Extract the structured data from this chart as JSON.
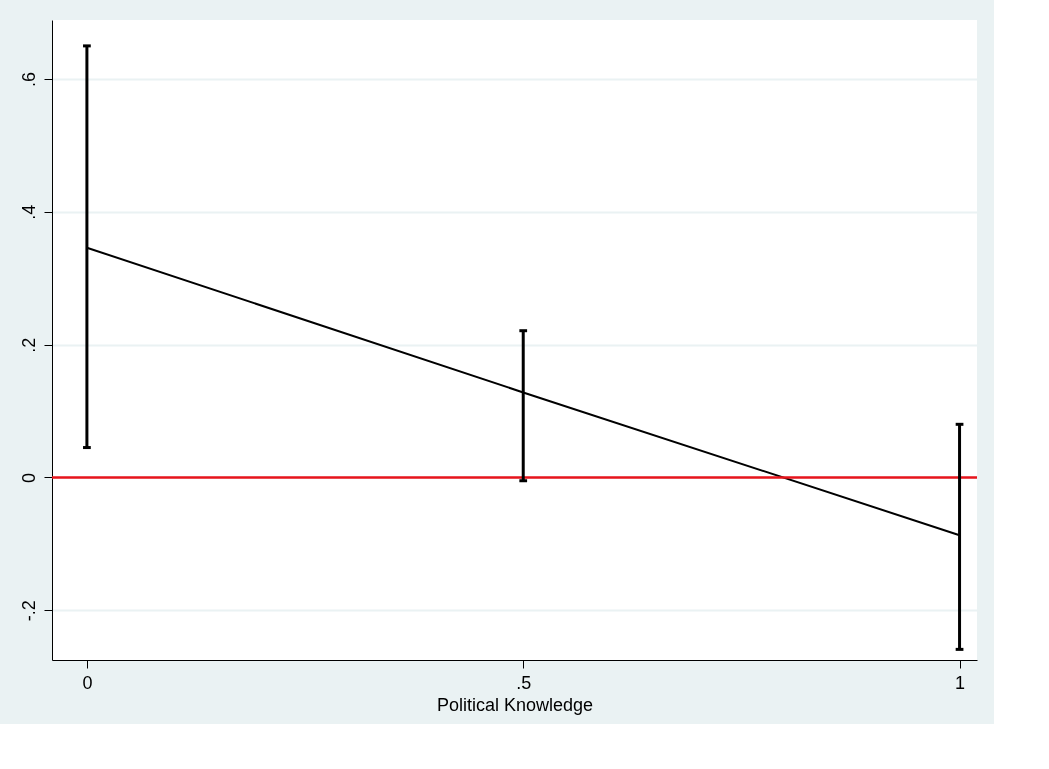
{
  "chart_data": {
    "type": "line",
    "xlabel": "Political Knowledge",
    "x": [
      0,
      0.5,
      1
    ],
    "series": [
      {
        "color": "#000000",
        "values": [
          0.346,
          0.128,
          -0.087
        ],
        "errors": [
          [
            0.045,
            0.65
          ],
          [
            -0.005,
            0.221
          ],
          [
            -0.259,
            0.08
          ]
        ]
      }
    ],
    "xlim": [
      -0.04,
      1.02
    ],
    "ylim": [
      -0.275,
      0.689
    ],
    "xticks": [
      0,
      {
        "value": 0.5,
        "label": ".5"
      },
      1
    ],
    "yticks": [
      {
        "value": -0.2,
        "label": "-.2"
      },
      0,
      {
        "value": 0.2,
        "label": ".2"
      },
      {
        "value": 0.4,
        "label": ".4"
      },
      {
        "value": 0.6,
        "label": ".6"
      }
    ],
    "ref_lines": [
      {
        "axis": "y",
        "value": 0,
        "color": "#e8141b"
      }
    ],
    "grid": "y",
    "marker": "none",
    "line_style": "solid"
  }
}
